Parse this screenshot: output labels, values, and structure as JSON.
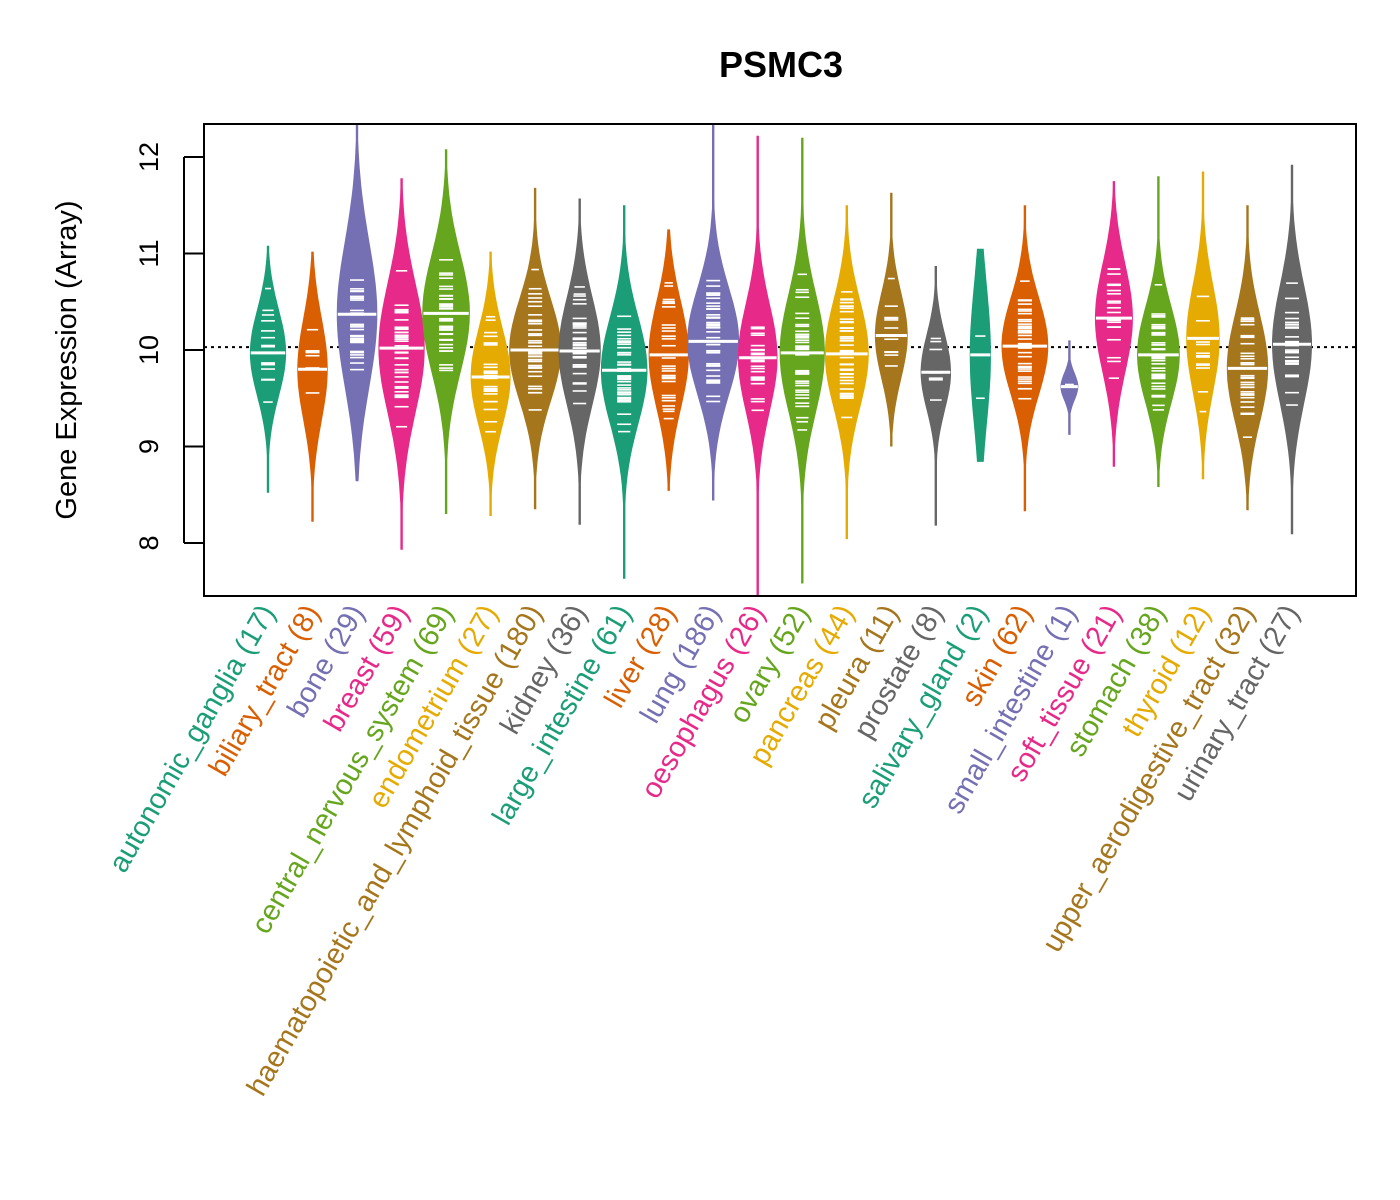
{
  "chart_data": {
    "type": "violin",
    "title": "PSMC3",
    "xlabel": "",
    "ylabel": "Gene Expression (Array)",
    "ylim": [
      7.45,
      12.35
    ],
    "yticks": [
      8,
      9,
      10,
      11,
      12
    ],
    "reference_line": 10.03,
    "grid": false,
    "legend": "none",
    "categories": [
      {
        "name": "autonomic_ganglia",
        "n": 17,
        "color": "#1B9E77",
        "median": 9.97,
        "min": 8.52,
        "max": 11.08,
        "q_low": 9.55,
        "q_high": 10.35
      },
      {
        "name": "biliary_tract",
        "n": 8,
        "color": "#D95F02",
        "median": 9.8,
        "min": 8.22,
        "max": 11.02,
        "q_low": 9.35,
        "q_high": 10.3
      },
      {
        "name": "bone",
        "n": 29,
        "color": "#7570B3",
        "median": 10.37,
        "min": 8.64,
        "max": 12.35,
        "q_low": 9.6,
        "q_high": 10.95
      },
      {
        "name": "breast",
        "n": 59,
        "color": "#E7298A",
        "median": 10.02,
        "min": 7.93,
        "max": 11.78,
        "q_low": 9.4,
        "q_high": 10.6
      },
      {
        "name": "central_nervous_system",
        "n": 69,
        "color": "#66A61E",
        "median": 10.38,
        "min": 8.3,
        "max": 12.08,
        "q_low": 9.8,
        "q_high": 10.9
      },
      {
        "name": "endometrium",
        "n": 27,
        "color": "#E6AB02",
        "median": 9.72,
        "min": 8.28,
        "max": 11.02,
        "q_low": 9.3,
        "q_high": 10.2
      },
      {
        "name": "haematopoietic_and_lymphoid_tissue",
        "n": 180,
        "color": "#A6761D",
        "median": 10.0,
        "min": 8.35,
        "max": 11.68,
        "q_low": 9.55,
        "q_high": 10.5
      },
      {
        "name": "kidney",
        "n": 36,
        "color": "#666666",
        "median": 9.99,
        "min": 8.19,
        "max": 11.57,
        "q_low": 9.5,
        "q_high": 10.5
      },
      {
        "name": "large_intestine",
        "n": 61,
        "color": "#1B9E77",
        "median": 9.79,
        "min": 7.63,
        "max": 11.5,
        "q_low": 9.3,
        "q_high": 10.3
      },
      {
        "name": "liver",
        "n": 28,
        "color": "#D95F02",
        "median": 9.95,
        "min": 8.54,
        "max": 11.25,
        "q_low": 9.5,
        "q_high": 10.5
      },
      {
        "name": "lung",
        "n": 186,
        "color": "#7570B3",
        "median": 10.09,
        "min": 8.44,
        "max": 12.35,
        "q_low": 9.6,
        "q_high": 10.6
      },
      {
        "name": "oesophagus",
        "n": 26,
        "color": "#E7298A",
        "median": 9.92,
        "min": 7.45,
        "max": 12.22,
        "q_low": 9.4,
        "q_high": 10.4
      },
      {
        "name": "ovary",
        "n": 52,
        "color": "#66A61E",
        "median": 9.97,
        "min": 7.58,
        "max": 12.2,
        "q_low": 9.4,
        "q_high": 10.5
      },
      {
        "name": "pancreas",
        "n": 44,
        "color": "#E6AB02",
        "median": 9.96,
        "min": 8.04,
        "max": 11.5,
        "q_low": 9.5,
        "q_high": 10.5
      },
      {
        "name": "pleura",
        "n": 11,
        "color": "#A6761D",
        "median": 10.15,
        "min": 9.0,
        "max": 11.63,
        "q_low": 9.7,
        "q_high": 10.5
      },
      {
        "name": "prostate",
        "n": 8,
        "color": "#666666",
        "median": 9.77,
        "min": 8.18,
        "max": 10.87,
        "q_low": 9.4,
        "q_high": 10.1
      },
      {
        "name": "salivary_gland",
        "n": 2,
        "color": "#1B9E77",
        "median": 9.95,
        "min": 8.84,
        "max": 11.05,
        "q_low": 9.3,
        "q_high": 10.6
      },
      {
        "name": "skin",
        "n": 62,
        "color": "#D95F02",
        "median": 10.04,
        "min": 8.33,
        "max": 11.5,
        "q_low": 9.6,
        "q_high": 10.5
      },
      {
        "name": "small_intestine",
        "n": 1,
        "color": "#7570B3",
        "median": 9.62,
        "min": 9.12,
        "max": 10.1,
        "q_low": 9.5,
        "q_high": 9.75
      },
      {
        "name": "soft_tissue",
        "n": 21,
        "color": "#E7298A",
        "median": 10.33,
        "min": 8.79,
        "max": 11.75,
        "q_low": 9.8,
        "q_high": 10.8
      },
      {
        "name": "stomach",
        "n": 38,
        "color": "#66A61E",
        "median": 9.95,
        "min": 8.58,
        "max": 11.8,
        "q_low": 9.4,
        "q_high": 10.3
      },
      {
        "name": "thyroid",
        "n": 12,
        "color": "#E6AB02",
        "median": 10.12,
        "min": 8.66,
        "max": 11.85,
        "q_low": 9.6,
        "q_high": 10.6
      },
      {
        "name": "upper_aerodigestive_tract",
        "n": 32,
        "color": "#A6761D",
        "median": 9.81,
        "min": 8.34,
        "max": 11.5,
        "q_low": 9.3,
        "q_high": 10.3
      },
      {
        "name": "urinary_tract",
        "n": 27,
        "color": "#666666",
        "median": 10.06,
        "min": 8.09,
        "max": 11.92,
        "q_low": 9.5,
        "q_high": 10.6
      }
    ]
  }
}
